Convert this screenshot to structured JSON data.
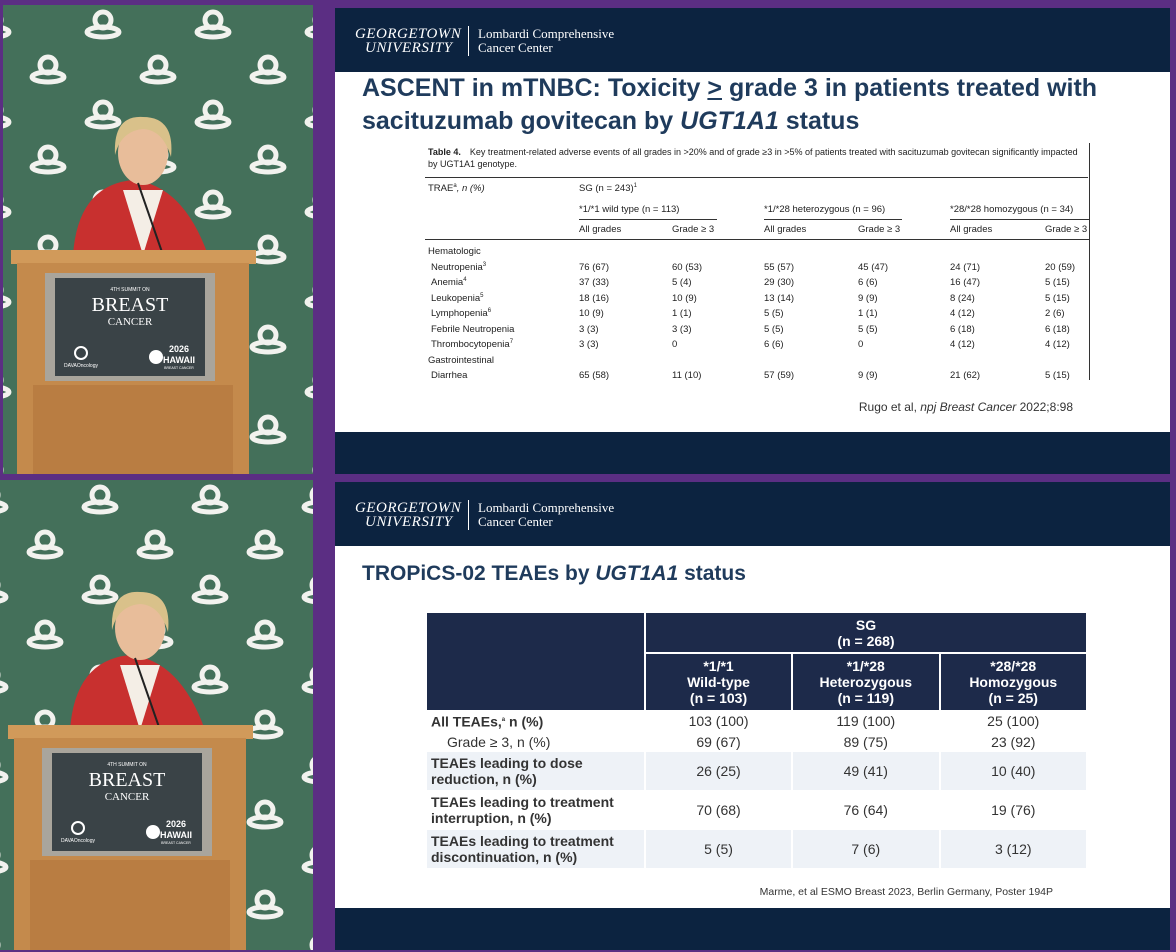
{
  "frames": [
    {
      "header": {
        "university_line1": "GEORGETOWN",
        "university_line2": "UNIVERSITY",
        "center_line1": "Lombardi Comprehensive",
        "center_line2": "Cancer Center"
      },
      "podium_sign": {
        "summit": "4TH SUMMIT ON",
        "breast": "BREAST",
        "cancer": "CANCER",
        "dava": "DAVAOncology",
        "year": "2026",
        "hawaii": "HAWAII",
        "hawaii_sub": "BREAST CANCER"
      },
      "slide": {
        "title_parts": [
          "ASCENT in mTNBC: Toxicity ",
          ">",
          " grade 3 in patients treated with sacituzumab govitecan by ",
          "UGT1A1",
          " status"
        ],
        "table": {
          "caption_label": "Table 4.",
          "caption": "Key treatment-related adverse events of all grades in >20% and of grade ≥3 in >5% of patients treated with sacituzumab govitecan significantly impacted by UGT1A1 genotype.",
          "stub_header": "TRAE",
          "stub_header_sup": "a",
          "stub_header_rest": ", n (%)",
          "sg": "SG (n = 243)",
          "sg_sup": "1",
          "groups": [
            "*1/*1 wild type (n = 113)",
            "*1/*28 heterozygous (n = 96)",
            "*28/*28 homozygous (n = 34)"
          ],
          "subheads": [
            "All grades",
            "Grade ≥ 3",
            "All grades",
            "Grade ≥ 3",
            "All grades",
            "Grade ≥ 3"
          ],
          "rows": [
            {
              "section": "Hematologic"
            },
            {
              "name": "Neutropenia",
              "sup": "3",
              "cells": [
                "76 (67)",
                "60 (53)",
                "55 (57)",
                "45 (47)",
                "24 (71)",
                "20 (59)"
              ]
            },
            {
              "name": "Anemia",
              "sup": "4",
              "cells": [
                "37 (33)",
                "5 (4)",
                "29 (30)",
                "6 (6)",
                "16 (47)",
                "5 (15)"
              ]
            },
            {
              "name": "Leukopenia",
              "sup": "5",
              "cells": [
                "18 (16)",
                "10 (9)",
                "13 (14)",
                "9 (9)",
                "8 (24)",
                "5 (15)"
              ]
            },
            {
              "name": "Lymphopenia",
              "sup": "6",
              "cells": [
                "10 (9)",
                "1 (1)",
                "5 (5)",
                "1 (1)",
                "4 (12)",
                "2 (6)"
              ]
            },
            {
              "name": "Febrile Neutropenia",
              "cells": [
                "3 (3)",
                "3 (3)",
                "5 (5)",
                "5 (5)",
                "6 (18)",
                "6 (18)"
              ]
            },
            {
              "name": "Thrombocytopenia",
              "sup": "7",
              "cells": [
                "3 (3)",
                "0",
                "6 (6)",
                "0",
                "4 (12)",
                "4 (12)"
              ]
            },
            {
              "section": "Gastrointestinal"
            },
            {
              "name": "Diarrhea",
              "cells": [
                "65 (58)",
                "11 (10)",
                "57 (59)",
                "9 (9)",
                "21 (62)",
                "5 (15)"
              ]
            }
          ]
        },
        "citation_parts": [
          "Rugo et al, ",
          "npj Breast Cancer",
          " 2022;8:98"
        ]
      }
    },
    {
      "header": {
        "university_line1": "GEORGETOWN",
        "university_line2": "UNIVERSITY",
        "center_line1": "Lombardi Comprehensive",
        "center_line2": "Cancer Center"
      },
      "podium_sign": {
        "summit": "4TH SUMMIT ON",
        "breast": "BREAST",
        "cancer": "CANCER",
        "dava": "DAVAOncology",
        "year": "2026",
        "hawaii": "HAWAII",
        "hawaii_sub": "BREAST CANCER"
      },
      "slide": {
        "title_parts": [
          "TROPiCS-02 TEAEs by ",
          "UGT1A1",
          " status"
        ],
        "table": {
          "sg": [
            "SG",
            "(n = 268)"
          ],
          "columns": [
            [
              "*1/*1",
              "Wild-type",
              "(n = 103)"
            ],
            [
              "*1/*28",
              "Heterozygous",
              "(n = 119)"
            ],
            [
              "*28/*28",
              "Homozygous",
              "(n = 25)"
            ]
          ],
          "rows": [
            {
              "label": "All TEAEs,",
              "sup": "a",
              "label_rest": " n (%)",
              "cells": [
                "103 (100)",
                "119 (100)",
                "25 (100)"
              ]
            },
            {
              "label": "Grade ≥ 3, n (%)",
              "indent": true,
              "cells": [
                "69 (67)",
                "89 (75)",
                "23 (92)"
              ]
            },
            {
              "label_lines": [
                "TEAEs leading to dose",
                "reduction, n (%)"
              ],
              "cells": [
                "26 (25)",
                "49 (41)",
                "10 (40)"
              ]
            },
            {
              "label_lines": [
                "TEAEs leading to treatment",
                "interruption, n (%)"
              ],
              "cells": [
                "70 (68)",
                "76 (64)",
                "19 (76)"
              ]
            },
            {
              "label_lines": [
                "TEAEs leading to treatment",
                "discontinuation, n (%)"
              ],
              "cells": [
                "5 (5)",
                "7 (6)",
                "3 (12)"
              ]
            }
          ]
        },
        "citation": "Marme, et al ESMO Breast 2023, Berlin Germany, Poster 194P"
      }
    }
  ]
}
